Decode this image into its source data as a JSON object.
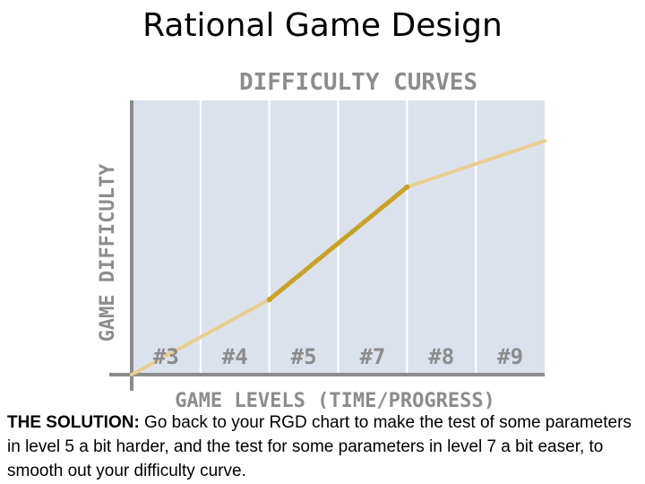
{
  "slide": {
    "title": "Rational Game Design"
  },
  "chart_data": {
    "type": "line",
    "title": "DIFFICULTY CURVES",
    "xlabel": "GAME LEVELS (TIME/PROGRESS)",
    "ylabel": "GAME DIFFICULTY",
    "categories": [
      "#3",
      "#4",
      "#5",
      "#7",
      "#8",
      "#9"
    ],
    "series": [
      {
        "points": [
          {
            "x": 0,
            "y": 0
          },
          {
            "x": 2,
            "y": 2.6
          },
          {
            "x": 4,
            "y": 6.5
          },
          {
            "x": 6,
            "y": 8.1
          }
        ],
        "highlight_segment": [
          2,
          4
        ],
        "color": "#e6cf8f",
        "highlight_color": "#c9a227"
      }
    ],
    "xlim": [
      0,
      6
    ],
    "ylim": [
      0,
      9.5
    ],
    "grid": true,
    "plot_background": "#dce2ec"
  },
  "caption": {
    "lead": "THE SOLUTION:",
    "body": " Go back to your RGD chart to make the test of some parameters in level 5 a bit harder, and the test for some parameters in level 7 a bit easer, to smooth out your difficulty curve."
  }
}
